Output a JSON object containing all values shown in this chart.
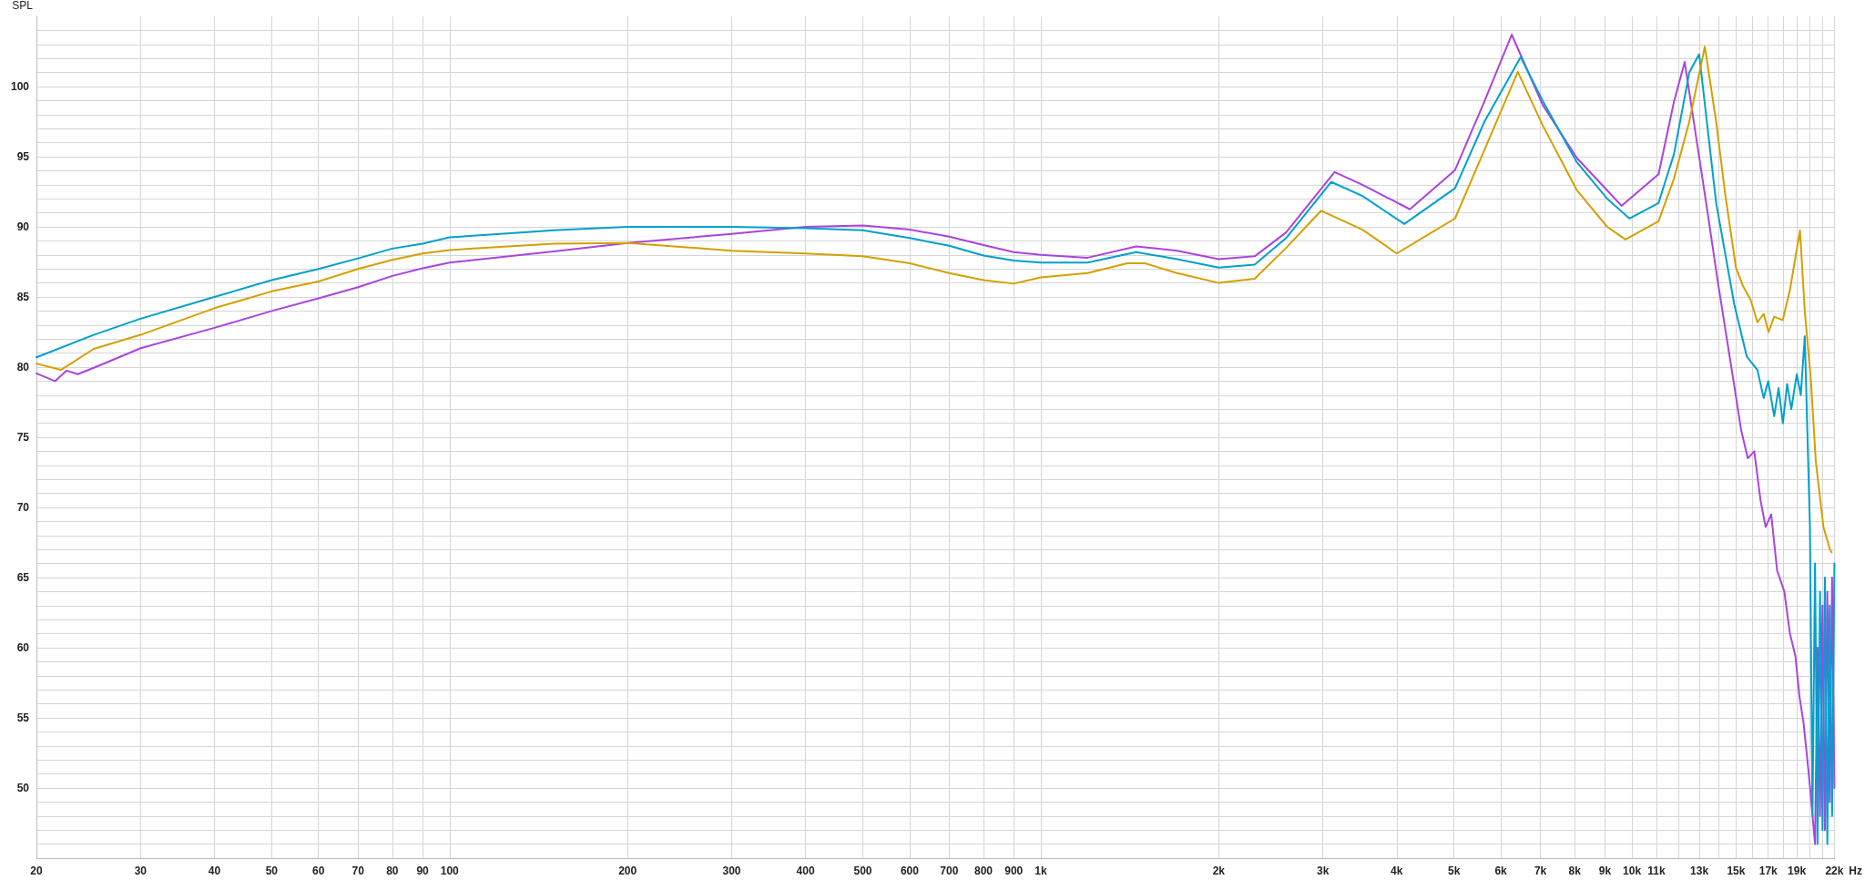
{
  "chart_data": {
    "type": "line",
    "ylabel": "SPL",
    "xlabel": "Hz",
    "log": "x",
    "grid": true,
    "marker": "none",
    "line_style": "solid",
    "xlim": [
      20,
      22000
    ],
    "ylim": [
      45,
      105
    ],
    "xticks": [
      20,
      30,
      40,
      50,
      60,
      70,
      80,
      90,
      100,
      200,
      300,
      400,
      500,
      600,
      700,
      800,
      900,
      {
        "value": 1000,
        "label": "1k"
      },
      {
        "value": 2000,
        "label": "2k"
      },
      {
        "value": 3000,
        "label": "3k"
      },
      {
        "value": 4000,
        "label": "4k"
      },
      {
        "value": 5000,
        "label": "5k"
      },
      {
        "value": 6000,
        "label": "6k"
      },
      {
        "value": 7000,
        "label": "7k"
      },
      {
        "value": 8000,
        "label": "8k"
      },
      {
        "value": 9000,
        "label": "9k"
      },
      {
        "value": 10000,
        "label": "10k"
      },
      {
        "value": 11000,
        "label": "11k"
      },
      {
        "value": 12000,
        "label": null
      },
      {
        "value": 13000,
        "label": "13k"
      },
      {
        "value": 14000,
        "label": null
      },
      {
        "value": 15000,
        "label": "15k"
      },
      {
        "value": 16000,
        "label": null
      },
      {
        "value": 17000,
        "label": "17k"
      },
      {
        "value": 18000,
        "label": null
      },
      {
        "value": 19000,
        "label": "19k"
      },
      {
        "value": 20000,
        "label": null
      },
      {
        "value": 21000,
        "label": null
      },
      {
        "value": 22000,
        "label": "22k"
      }
    ],
    "yticks": [
      {
        "value": 46,
        "label": null
      },
      {
        "value": 47,
        "label": null
      },
      {
        "value": 48,
        "label": null
      },
      {
        "value": 49,
        "label": null
      },
      50,
      {
        "value": 51,
        "label": null
      },
      {
        "value": 52,
        "label": null
      },
      {
        "value": 53,
        "label": null
      },
      {
        "value": 54,
        "label": null
      },
      55,
      {
        "value": 56,
        "label": null
      },
      {
        "value": 57,
        "label": null
      },
      {
        "value": 58,
        "label": null
      },
      {
        "value": 59,
        "label": null
      },
      60,
      {
        "value": 61,
        "label": null
      },
      {
        "value": 62,
        "label": null
      },
      {
        "value": 63,
        "label": null
      },
      {
        "value": 64,
        "label": null
      },
      65,
      {
        "value": 66,
        "label": null
      },
      {
        "value": 67,
        "label": null
      },
      {
        "value": 68,
        "label": null
      },
      {
        "value": 69,
        "label": null
      },
      70,
      {
        "value": 71,
        "label": null
      },
      {
        "value": 72,
        "label": null
      },
      {
        "value": 73,
        "label": null
      },
      {
        "value": 74,
        "label": null
      },
      75,
      {
        "value": 76,
        "label": null
      },
      {
        "value": 77,
        "label": null
      },
      {
        "value": 78,
        "label": null
      },
      {
        "value": 79,
        "label": null
      },
      80,
      {
        "value": 81,
        "label": null
      },
      {
        "value": 82,
        "label": null
      },
      {
        "value": 83,
        "label": null
      },
      {
        "value": 84,
        "label": null
      },
      85,
      {
        "value": 86,
        "label": null
      },
      {
        "value": 87,
        "label": null
      },
      {
        "value": 88,
        "label": null
      },
      {
        "value": 89,
        "label": null
      },
      90,
      {
        "value": 91,
        "label": null
      },
      {
        "value": 92,
        "label": null
      },
      {
        "value": 93,
        "label": null
      },
      {
        "value": 94,
        "label": null
      },
      95,
      {
        "value": 96,
        "label": null
      },
      {
        "value": 97,
        "label": null
      },
      {
        "value": 98,
        "label": null
      },
      {
        "value": 99,
        "label": null
      },
      100,
      {
        "value": 101,
        "label": null
      },
      {
        "value": 102,
        "label": null
      },
      {
        "value": 103,
        "label": null
      },
      {
        "value": 104,
        "label": null
      }
    ],
    "series": [
      {
        "color": "#aa44dd",
        "x": [
          20,
          21.5,
          22.5,
          23.5,
          25.5,
          30,
          40,
          50,
          60,
          70,
          80,
          90,
          100,
          150,
          200,
          300,
          400,
          500,
          600,
          700,
          800,
          900,
          1000,
          1200,
          1450,
          1700,
          2000,
          2300,
          2600,
          3140,
          3500,
          4210,
          5020,
          5630,
          6260,
          7070,
          8070,
          9080,
          9600,
          11090,
          11780,
          12280,
          13350,
          13980,
          14890,
          15300,
          15700,
          16100,
          16500,
          16830,
          17200,
          17600,
          18100,
          18500,
          18900,
          19200,
          19500,
          19800,
          20000,
          20200,
          20400,
          20600,
          20800,
          21000,
          21200,
          21400,
          21600,
          21800,
          22000
        ],
        "values": [
          79.55,
          79.0,
          79.75,
          79.5,
          80.1,
          81.35,
          82.8,
          84.0,
          84.9,
          85.7,
          86.5,
          87.05,
          87.45,
          88.25,
          88.85,
          89.5,
          90.0,
          90.1,
          89.8,
          89.3,
          88.7,
          88.2,
          88.0,
          87.8,
          88.6,
          88.3,
          87.7,
          87.9,
          89.6,
          93.9,
          93.0,
          91.25,
          94.05,
          98.95,
          103.7,
          98.65,
          94.9,
          92.6,
          91.5,
          93.75,
          98.95,
          101.75,
          91.7,
          86.0,
          78.7,
          75.5,
          73.5,
          74.0,
          70.5,
          68.6,
          69.5,
          65.5,
          64.0,
          61.0,
          59.4,
          56.5,
          54.7,
          52,
          50.1,
          null,
          46,
          60,
          48,
          63,
          47,
          64,
          49,
          65,
          50
        ]
      },
      {
        "color": "#00a0cc",
        "x": [
          20,
          25,
          30,
          40,
          50,
          60,
          70,
          80,
          90,
          100,
          150,
          200,
          300,
          400,
          500,
          600,
          700,
          800,
          900,
          1000,
          1200,
          1450,
          1700,
          2000,
          2300,
          2600,
          3100,
          3500,
          4120,
          5020,
          5630,
          6480,
          7070,
          8070,
          9080,
          9900,
          11090,
          11780,
          12500,
          12990,
          13880,
          14890,
          15640,
          16300,
          16700,
          17000,
          17400,
          17700,
          18000,
          18300,
          18600,
          19000,
          19300,
          19600,
          20000,
          20200,
          20400,
          20600,
          20800,
          21000,
          21200,
          21400,
          21600,
          21800,
          22000
        ],
        "values": [
          80.7,
          82.3,
          83.45,
          85.0,
          86.2,
          87.0,
          87.75,
          88.45,
          88.8,
          89.25,
          89.75,
          90.0,
          90.0,
          89.9,
          89.75,
          89.2,
          88.65,
          87.95,
          87.6,
          87.45,
          87.45,
          88.2,
          87.7,
          87.1,
          87.3,
          89.2,
          93.2,
          92.2,
          90.2,
          92.75,
          97.5,
          102.1,
          98.95,
          94.6,
          92.0,
          90.6,
          91.7,
          95.2,
          101.0,
          102.3,
          91.7,
          84.5,
          80.75,
          79.8,
          77.8,
          79.0,
          76.5,
          78.5,
          76.0,
          78.8,
          77.0,
          79.5,
          78.0,
          82.2,
          68.6,
          48,
          66,
          46,
          64,
          47,
          65,
          46,
          63,
          48,
          66
        ]
      },
      {
        "color": "#d4a000",
        "x": [
          20,
          22,
          25,
          30,
          40,
          50,
          60,
          70,
          80,
          90,
          100,
          150,
          200,
          300,
          400,
          500,
          600,
          700,
          800,
          900,
          1000,
          1200,
          1400,
          1500,
          1700,
          2000,
          2300,
          2600,
          2980,
          3500,
          4000,
          5020,
          5630,
          6410,
          7070,
          8070,
          9080,
          9750,
          11090,
          11780,
          12500,
          13280,
          13880,
          14380,
          14990,
          15400,
          15870,
          16300,
          16700,
          17020,
          17400,
          17990,
          18500,
          19240,
          19600,
          20070,
          20460,
          21080,
          21620,
          21760
        ],
        "values": [
          80.25,
          79.8,
          81.3,
          82.3,
          84.2,
          85.4,
          86.1,
          87.0,
          87.65,
          88.1,
          88.35,
          88.8,
          88.85,
          88.3,
          88.1,
          87.9,
          87.4,
          86.7,
          86.2,
          85.95,
          86.4,
          86.7,
          87.4,
          87.4,
          86.7,
          86.0,
          86.3,
          88.5,
          91.15,
          89.8,
          88.1,
          90.6,
          95.5,
          101.05,
          97.2,
          92.6,
          90.0,
          89.1,
          90.4,
          93.45,
          97.5,
          102.85,
          97.5,
          92.3,
          87.1,
          85.8,
          84.8,
          83.2,
          83.8,
          82.5,
          83.6,
          83.35,
          85.5,
          89.75,
          84,
          79.1,
          73.3,
          68.6,
          67.0,
          66.8
        ]
      }
    ]
  }
}
